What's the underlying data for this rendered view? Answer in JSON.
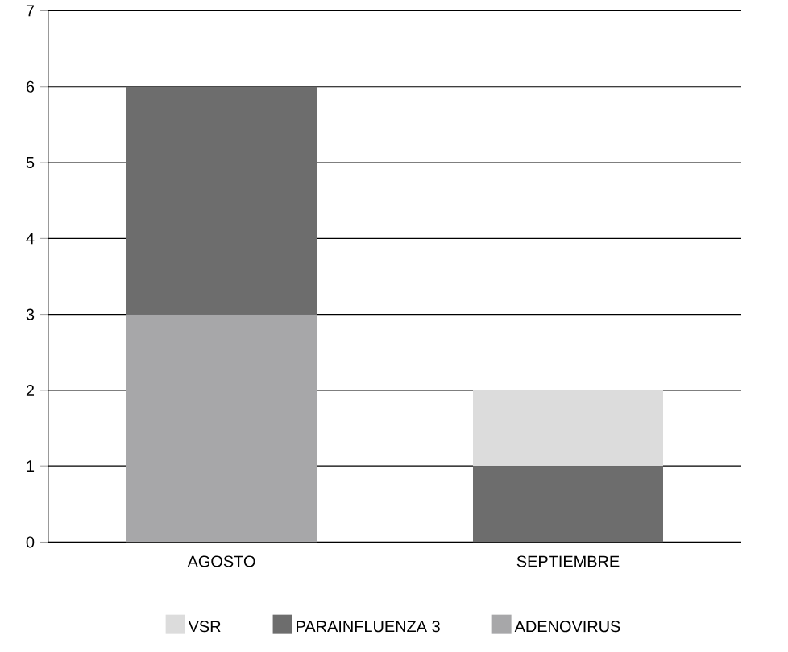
{
  "chart_data": {
    "type": "bar",
    "stacked": true,
    "categories": [
      "AGOSTO",
      "SEPTIEMBRE"
    ],
    "series": [
      {
        "name": "ADENOVIRUS",
        "color": "#a7a7a9",
        "values": [
          3,
          0
        ]
      },
      {
        "name": "PARAINFLUENZA 3",
        "color": "#6d6d6d",
        "values": [
          3,
          1
        ]
      },
      {
        "name": "VSR",
        "color": "#dcdcdc",
        "values": [
          0,
          1
        ]
      }
    ],
    "ylim": [
      0,
      7
    ],
    "yticks": [
      0,
      1,
      2,
      3,
      4,
      5,
      6,
      7
    ],
    "grid": "y",
    "legend": "bottom"
  }
}
